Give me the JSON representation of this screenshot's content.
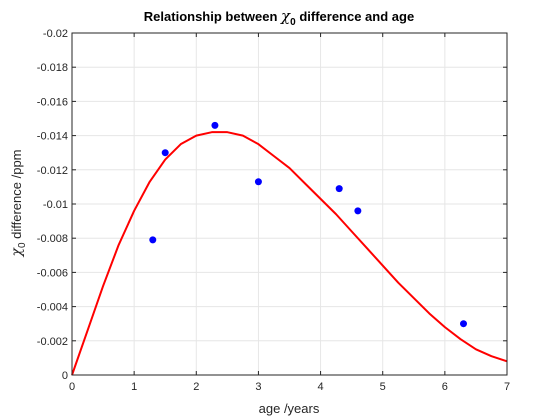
{
  "chart_data": {
    "type": "scatter",
    "title": {
      "prefix": "Relationship between ",
      "symbol": "χ",
      "subscript": "0",
      "suffix": " difference and age"
    },
    "xlabel": "age /years",
    "ylabel": {
      "symbol": "χ",
      "subscript": "0",
      "suffix": " difference /ppm"
    },
    "xlim": [
      0,
      7
    ],
    "ylim": [
      0,
      -0.02
    ],
    "y_direction": "reversed",
    "grid": true,
    "x_ticks": [
      0,
      1,
      2,
      3,
      4,
      5,
      6,
      7
    ],
    "x_tick_labels": [
      "0",
      "1",
      "2",
      "3",
      "4",
      "5",
      "6",
      "7"
    ],
    "y_ticks": [
      0,
      -0.002,
      -0.004,
      -0.006,
      -0.008,
      -0.01,
      -0.012,
      -0.014,
      -0.016,
      -0.018,
      -0.02
    ],
    "y_tick_labels": [
      "0",
      "-0.002",
      "-0.004",
      "-0.006",
      "-0.008",
      "-0.01",
      "-0.012",
      "-0.014",
      "-0.016",
      "-0.018",
      "-0.02"
    ],
    "series": [
      {
        "kind": "points",
        "color": "#0000ff",
        "x": [
          1.3,
          1.5,
          2.3,
          3.0,
          4.3,
          4.6,
          6.3
        ],
        "y": [
          -0.0079,
          -0.013,
          -0.0146,
          -0.0113,
          -0.0109,
          -0.0096,
          -0.003
        ]
      },
      {
        "kind": "fitted-curve",
        "color": "#ff0000",
        "x": [
          0,
          0.25,
          0.5,
          0.75,
          1.0,
          1.25,
          1.5,
          1.75,
          2.0,
          2.25,
          2.5,
          2.75,
          3.0,
          3.25,
          3.5,
          3.75,
          4.0,
          4.25,
          4.5,
          4.75,
          5.0,
          5.25,
          5.5,
          5.75,
          6.0,
          6.25,
          6.5,
          6.75,
          7.0
        ],
        "y": [
          0,
          -0.0026,
          -0.0052,
          -0.0076,
          -0.0096,
          -0.0113,
          -0.0126,
          -0.0135,
          -0.014,
          -0.0142,
          -0.0142,
          -0.014,
          -0.0135,
          -0.0128,
          -0.0121,
          -0.0112,
          -0.0103,
          -0.0094,
          -0.0084,
          -0.0074,
          -0.0064,
          -0.0054,
          -0.0045,
          -0.0036,
          -0.0028,
          -0.0021,
          -0.0015,
          -0.0011,
          -0.0008
        ]
      }
    ]
  }
}
